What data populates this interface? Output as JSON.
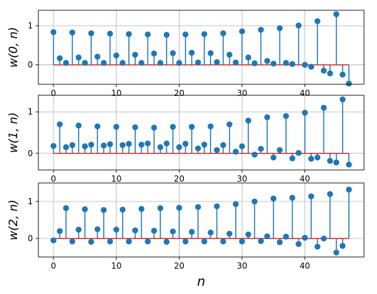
{
  "chart_data": [
    {
      "type": "stem",
      "ylabel": "w(0, n)",
      "xlabel": "",
      "xlim": [
        -2.4,
        49.4
      ],
      "ylim": [
        -0.5,
        1.4
      ],
      "xticks": [
        0,
        10,
        20,
        30,
        40
      ],
      "yticks": [
        0,
        1
      ],
      "grid": true,
      "baseline": 0,
      "marker_color": "#1f77b4",
      "baseline_color": "#d62728",
      "x": [
        0,
        1,
        2,
        3,
        4,
        5,
        6,
        7,
        8,
        9,
        10,
        11,
        12,
        13,
        14,
        15,
        16,
        17,
        18,
        19,
        20,
        21,
        22,
        23,
        24,
        25,
        26,
        27,
        28,
        29,
        30,
        31,
        32,
        33,
        34,
        35,
        36,
        37,
        38,
        39,
        40,
        41,
        42,
        43,
        44,
        45,
        46,
        47
      ],
      "values": [
        0.84,
        0.17,
        0.05,
        0.83,
        0.19,
        0.05,
        0.81,
        0.21,
        0.05,
        0.8,
        0.24,
        0.05,
        0.79,
        0.26,
        0.05,
        0.78,
        0.29,
        0.05,
        0.77,
        0.3,
        0.05,
        0.78,
        0.31,
        0.06,
        0.79,
        0.3,
        0.07,
        0.81,
        0.26,
        0.06,
        0.86,
        0.19,
        0.04,
        0.9,
        0.1,
        0.03,
        0.94,
        0.05,
        0.02,
        1.01,
        0.0,
        -0.05,
        1.12,
        -0.15,
        -0.22,
        1.3,
        -0.25,
        -0.48
      ]
    },
    {
      "type": "stem",
      "ylabel": "w(1, n)",
      "xlabel": "",
      "xlim": [
        -2.4,
        49.4
      ],
      "ylim": [
        -0.4,
        1.4
      ],
      "xticks": [
        0,
        10,
        20,
        30,
        40
      ],
      "yticks": [
        0,
        1
      ],
      "grid": true,
      "baseline": 0,
      "marker_color": "#1f77b4",
      "baseline_color": "#d62728",
      "x": [
        0,
        1,
        2,
        3,
        4,
        5,
        6,
        7,
        8,
        9,
        10,
        11,
        12,
        13,
        14,
        15,
        16,
        17,
        18,
        19,
        20,
        21,
        22,
        23,
        24,
        25,
        26,
        27,
        28,
        29,
        30,
        31,
        32,
        33,
        34,
        35,
        36,
        37,
        38,
        39,
        40,
        41,
        42,
        43,
        44,
        45,
        46,
        47
      ],
      "values": [
        0.18,
        0.7,
        0.15,
        0.2,
        0.67,
        0.17,
        0.21,
        0.65,
        0.19,
        0.22,
        0.64,
        0.2,
        0.23,
        0.63,
        0.21,
        0.24,
        0.62,
        0.15,
        0.24,
        0.64,
        0.15,
        0.23,
        0.64,
        0.12,
        0.21,
        0.65,
        0.08,
        0.2,
        0.7,
        0.04,
        0.17,
        0.79,
        -0.03,
        0.11,
        0.87,
        -0.1,
        0.08,
        0.9,
        -0.12,
        0.01,
        0.98,
        -0.13,
        -0.1,
        1.1,
        -0.18,
        -0.22,
        1.3,
        -0.27
      ]
    },
    {
      "type": "stem",
      "ylabel": "w(2, n)",
      "xlabel": "n",
      "xlim": [
        -2.4,
        49.4
      ],
      "ylim": [
        -0.5,
        1.5
      ],
      "xticks": [
        0,
        10,
        20,
        30,
        40
      ],
      "yticks": [
        0,
        1
      ],
      "grid": true,
      "baseline": 0,
      "marker_color": "#1f77b4",
      "baseline_color": "#d62728",
      "x": [
        0,
        1,
        2,
        3,
        4,
        5,
        6,
        7,
        8,
        9,
        10,
        11,
        12,
        13,
        14,
        15,
        16,
        17,
        18,
        19,
        20,
        21,
        22,
        23,
        24,
        25,
        26,
        27,
        28,
        29,
        30,
        31,
        32,
        33,
        34,
        35,
        36,
        37,
        38,
        39,
        40,
        41,
        42,
        43,
        44,
        45,
        46,
        47
      ],
      "values": [
        -0.05,
        0.2,
        0.82,
        -0.08,
        0.24,
        0.79,
        -0.09,
        0.25,
        0.77,
        -0.08,
        0.24,
        0.78,
        -0.08,
        0.22,
        0.8,
        -0.08,
        0.21,
        0.82,
        -0.09,
        0.19,
        0.83,
        -0.08,
        0.18,
        0.85,
        -0.08,
        0.16,
        0.87,
        -0.08,
        0.13,
        0.93,
        -0.08,
        0.11,
        1.0,
        -0.07,
        0.06,
        1.08,
        -0.1,
        0.05,
        1.1,
        -0.15,
        0.02,
        1.14,
        -0.22,
        0.0,
        1.2,
        -0.38,
        -0.2,
        1.32
      ]
    }
  ]
}
